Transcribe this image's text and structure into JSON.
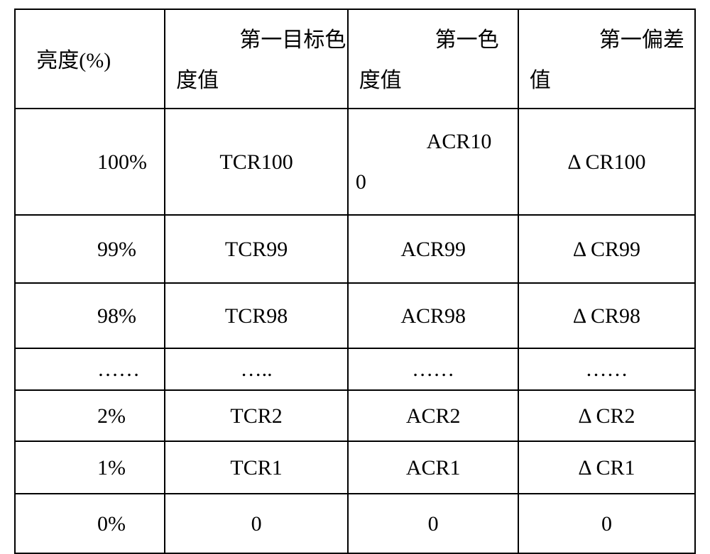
{
  "table": {
    "border_color": "#000000",
    "background_color": "#ffffff",
    "font_family": "SimSun, serif",
    "header_fontsize_pt": 22,
    "body_fontsize_pt": 22,
    "columns": [
      {
        "key": "brightness",
        "label_line1": "",
        "label_line2": "亮度(%)",
        "width_pct": 22,
        "align": "left"
      },
      {
        "key": "target_chroma",
        "label_line1": "第一目标色",
        "label_line2": "度值",
        "width_pct": 27,
        "align": "center"
      },
      {
        "key": "first_chroma",
        "label_line1": "第一色",
        "label_line2": "度值",
        "width_pct": 25,
        "align": "center"
      },
      {
        "key": "first_deviation",
        "label_line1": "第一偏差",
        "label_line2": "值",
        "width_pct": 26,
        "align": "center"
      }
    ],
    "rows": [
      {
        "brightness": "100%",
        "target_chroma": "TCR100",
        "first_chroma_l1": "ACR10",
        "first_chroma_l2": "0",
        "first_deviation": "Δ CR100",
        "kind": "big"
      },
      {
        "brightness": "99%",
        "target_chroma": "TCR99",
        "first_chroma": "ACR99",
        "first_deviation": "Δ CR99",
        "kind": "med"
      },
      {
        "brightness": "98%",
        "target_chroma": "TCR98",
        "first_chroma": "ACR98",
        "first_deviation": "Δ CR98",
        "kind": "med2"
      },
      {
        "brightness": "……",
        "target_chroma": "…..",
        "first_chroma": "……",
        "first_deviation": "……",
        "kind": "sm"
      },
      {
        "brightness": "2%",
        "target_chroma": "TCR2",
        "first_chroma": "ACR2",
        "first_deviation": "Δ CR2",
        "kind": "s2"
      },
      {
        "brightness": "1%",
        "target_chroma": "TCR1",
        "first_chroma": "ACR1",
        "first_deviation": "Δ CR1",
        "kind": "s3"
      },
      {
        "brightness": "0%",
        "target_chroma": "0",
        "first_chroma": "0",
        "first_deviation": "0",
        "kind": "s4"
      }
    ]
  }
}
